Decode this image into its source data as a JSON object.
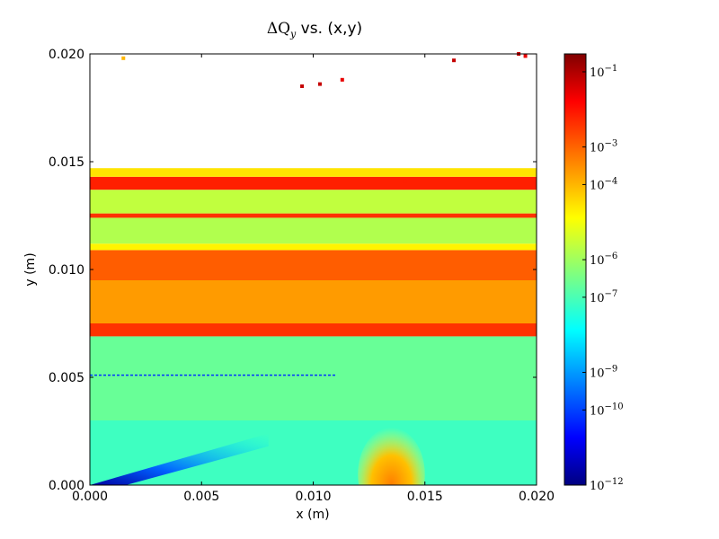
{
  "chart_data": {
    "type": "heatmap",
    "title": {
      "symbol": "ΔQ",
      "subscript": "y",
      "rest": " vs. (x,y)"
    },
    "xlabel": "x (m)",
    "ylabel": "y (m)",
    "xlim": [
      0.0,
      0.02
    ],
    "ylim": [
      0.0,
      0.02
    ],
    "xticks": [
      "0.000",
      "0.005",
      "0.010",
      "0.015",
      "0.020"
    ],
    "yticks": [
      "0.000",
      "0.005",
      "0.010",
      "0.015",
      "0.020"
    ],
    "colorscale": "jet",
    "color_scale_type": "log",
    "colorbar_range": [
      1e-12,
      0.3
    ],
    "colorbar_ticks": [
      {
        "base": "10",
        "exp": "−1"
      },
      {
        "base": "10",
        "exp": "−3"
      },
      {
        "base": "10",
        "exp": "−4"
      },
      {
        "base": "10",
        "exp": "−6"
      },
      {
        "base": "10",
        "exp": "−7"
      },
      {
        "base": "10",
        "exp": "−9"
      },
      {
        "base": "10",
        "exp": "−10"
      },
      {
        "base": "10",
        "exp": "−12"
      }
    ],
    "colorbar_tick_values": [
      0.1,
      0.001,
      0.0001,
      1e-06,
      1e-07,
      1e-09,
      1e-10,
      1e-12
    ],
    "bands": [
      {
        "y0": 0.0,
        "y1": 0.003,
        "value": 1e-07
      },
      {
        "y0": 0.003,
        "y1": 0.0069,
        "value": 3e-07
      },
      {
        "y0": 0.0069,
        "y1": 0.0075,
        "value": 0.003
      },
      {
        "y0": 0.0075,
        "y1": 0.0095,
        "value": 0.0002
      },
      {
        "y0": 0.0095,
        "y1": 0.0109,
        "value": 0.001
      },
      {
        "y0": 0.0109,
        "y1": 0.0112,
        "value": 2e-05
      },
      {
        "y0": 0.0112,
        "y1": 0.0124,
        "value": 2e-06
      },
      {
        "y0": 0.0124,
        "y1": 0.0126,
        "value": 0.003
      },
      {
        "y0": 0.0126,
        "y1": 0.0137,
        "value": 3e-06
      },
      {
        "y0": 0.0137,
        "y1": 0.0143,
        "value": 0.005
      },
      {
        "y0": 0.0143,
        "y1": 0.0147,
        "value": 3e-05
      }
    ],
    "features": [
      {
        "kind": "diagonal_low",
        "description_value": 1e-12,
        "from": [
          0.0,
          0.0
        ],
        "to": [
          0.008,
          0.003
        ]
      },
      {
        "kind": "line",
        "y": 0.0051,
        "value": 1e-10
      },
      {
        "kind": "arc",
        "center": [
          0.0135,
          0.0005
        ],
        "radius": 0.0015,
        "value": 0.0002
      }
    ],
    "scatter": [
      {
        "x": 0.0095,
        "y": 0.0185,
        "value": 0.05
      },
      {
        "x": 0.0103,
        "y": 0.0186,
        "value": 0.05
      },
      {
        "x": 0.0113,
        "y": 0.0188,
        "value": 0.02
      },
      {
        "x": 0.0163,
        "y": 0.0197,
        "value": 0.05
      },
      {
        "x": 0.0192,
        "y": 0.02,
        "value": 0.05
      },
      {
        "x": 0.0195,
        "y": 0.0199,
        "value": 0.02
      },
      {
        "x": 0.0015,
        "y": 0.0198,
        "value": 0.0001
      },
      {
        "x": 0.0141,
        "y": 0.0141,
        "value": 0.005
      }
    ]
  }
}
